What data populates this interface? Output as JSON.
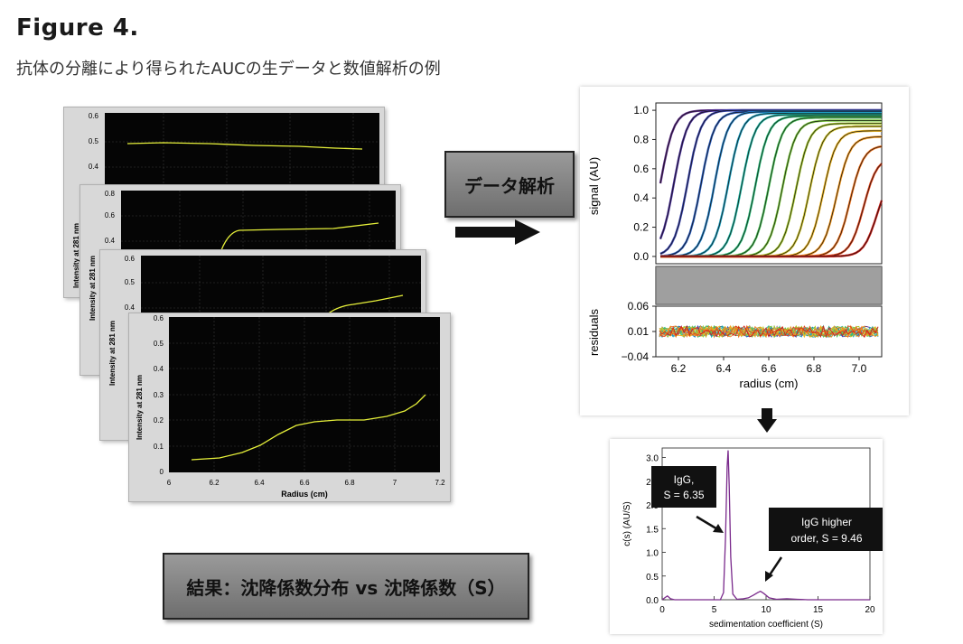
{
  "figure": {
    "title": "Figure 4.",
    "caption": "抗体の分離により得られたAUCの生データと数値解析の例"
  },
  "boxes": {
    "analysis_label": "データ解析",
    "result_label": "結果：沈降係数分布 vs 沈降係数（S）"
  },
  "raw_panels": {
    "ylabel": "Intensity at 281 nm",
    "xlabel": "Radius (cm)",
    "front_x_ticks": [
      "6",
      "6.2",
      "6.4",
      "6.6",
      "6.8",
      "7",
      "7.2"
    ],
    "front_y_ticks": [
      "0",
      "0.1",
      "0.2",
      "0.3",
      "0.4",
      "0.5",
      "0.6"
    ],
    "panel1_y_ticks": [
      "0.6",
      "0.5",
      "0.4"
    ],
    "panel2_y_ticks": [
      "0.8",
      "0.6",
      "0.4"
    ],
    "panel3_y_ticks": [
      "0.6",
      "0.5",
      "0.4"
    ]
  },
  "colors": {
    "trace": "#e6f03a",
    "plot_bg": "#050505",
    "arrow": "#111111",
    "cs_line": "#7a2a8c"
  },
  "chart_data": [
    {
      "type": "line",
      "title": "",
      "xlabel": "radius (cm)",
      "ylabel": "signal (AU)",
      "residual_label": "residuals",
      "x_ticks": [
        "6.2",
        "6.4",
        "6.6",
        "6.8",
        "7.0"
      ],
      "y_ticks": [
        "0.0",
        "0.2",
        "0.4",
        "0.6",
        "0.8",
        "1.0"
      ],
      "residual_ticks": [
        "0.06",
        "0.01",
        "−0.04"
      ],
      "xlim": [
        6.1,
        7.1
      ],
      "ylim": [
        -0.05,
        1.05
      ],
      "residual_lim": [
        -0.04,
        0.06
      ],
      "scan_midpoints": [
        6.12,
        6.18,
        6.24,
        6.3,
        6.36,
        6.42,
        6.48,
        6.54,
        6.6,
        6.66,
        6.72,
        6.78,
        6.84,
        6.9,
        6.96,
        7.02,
        7.08
      ],
      "plateau": [
        1.0,
        1.0,
        1.0,
        0.99,
        0.99,
        0.98,
        0.97,
        0.96,
        0.95,
        0.93,
        0.91,
        0.89,
        0.86,
        0.82,
        0.76,
        0.68,
        0.58
      ],
      "scan_colors": [
        "#5b2a86",
        "#4a2f9a",
        "#3a45b0",
        "#2d60c0",
        "#2380c8",
        "#1ea0c0",
        "#1fb6a2",
        "#2ec07c",
        "#4cc55a",
        "#7ac83e",
        "#a7c92f",
        "#cfc42a",
        "#ecb624",
        "#f49a22",
        "#f07520",
        "#e4471c",
        "#d0221a"
      ]
    },
    {
      "type": "line",
      "title": "",
      "xlabel": "sedimentation coefficient (S)",
      "ylabel": "c(s) (AU/S)",
      "x_ticks": [
        "0",
        "5",
        "10",
        "15",
        "20"
      ],
      "y_ticks": [
        "0.0",
        "0.5",
        "1.0",
        "1.5",
        "2.0",
        "2.5",
        "3.0"
      ],
      "xlim": [
        0,
        20
      ],
      "ylim": [
        0,
        3.2
      ],
      "x": [
        0,
        0.3,
        0.5,
        0.8,
        1.2,
        2,
        3,
        4,
        5,
        5.6,
        5.9,
        6.1,
        6.25,
        6.35,
        6.45,
        6.6,
        6.8,
        7.2,
        7.8,
        8.3,
        8.8,
        9.2,
        9.46,
        9.8,
        10.3,
        11,
        12,
        13,
        14,
        16,
        18,
        20
      ],
      "values": [
        0,
        0.05,
        0.08,
        0.02,
        0,
        0,
        0,
        0,
        0,
        0,
        0.15,
        1.3,
        2.8,
        3.15,
        2.4,
        0.9,
        0.12,
        0.01,
        0.02,
        0.04,
        0.1,
        0.15,
        0.18,
        0.13,
        0.04,
        0.01,
        0.02,
        0.01,
        0,
        0,
        0,
        0
      ],
      "annotations": [
        {
          "label_line1": "IgG,",
          "label_line2": "S = 6.35",
          "s": 6.35
        },
        {
          "label_line1": "IgG higher",
          "label_line2": "order, S = 9.46",
          "s": 9.46
        }
      ]
    }
  ]
}
